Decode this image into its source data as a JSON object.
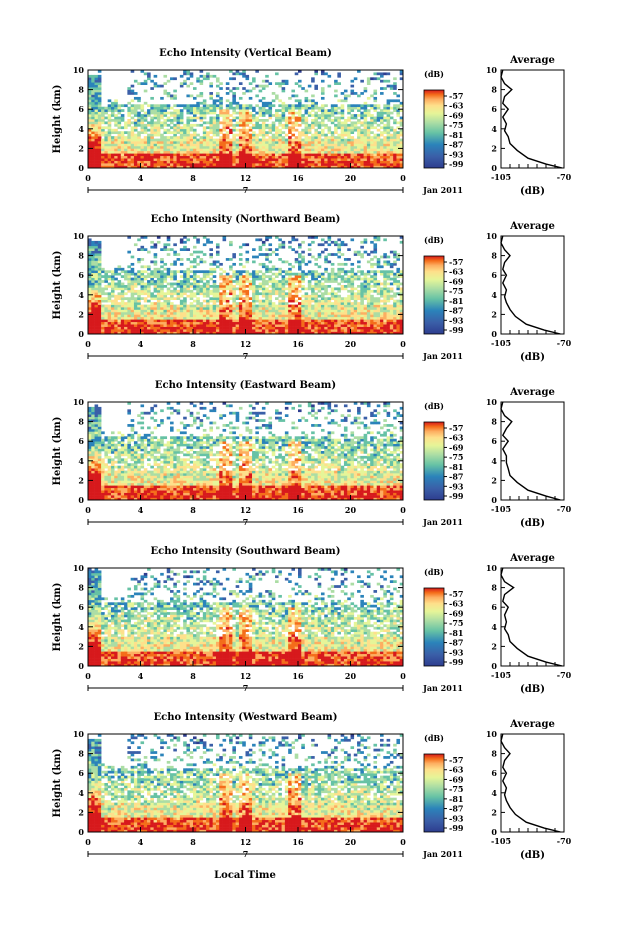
{
  "figure": {
    "xlabel": "Local Time",
    "date_label": "Jan 2011",
    "day_label": "7"
  },
  "chart_data": [
    {
      "type": "heatmap",
      "title": "Echo Intensity (Vertical Beam)",
      "ylabel": "Height (km)",
      "ylim": [
        0,
        10
      ],
      "yticks": [
        0,
        2,
        4,
        6,
        8,
        10
      ],
      "xlim": [
        0,
        24
      ],
      "xticks": [
        "0",
        "4",
        "8",
        "12",
        "16",
        "20",
        "0"
      ],
      "colorbar": {
        "unit": "(dB)",
        "ticks": [
          "-57",
          "-63",
          "-69",
          "-75",
          "-81",
          "-87",
          "-93",
          "-99"
        ],
        "colors": [
          "#d7191c",
          "#f46d1a",
          "#fdae61",
          "#fee08b",
          "#e6f598",
          "#abdda4",
          "#66c2a5",
          "#2b83ba",
          "#3a5fa8",
          "#2e3d8f"
        ]
      }
    },
    {
      "type": "line",
      "title": "Average",
      "xlabel": "(dB)",
      "xlim": [
        -105,
        -70
      ],
      "xticks": [
        "-105",
        "-70"
      ],
      "ylim": [
        0,
        10
      ],
      "yticks": [
        0,
        2,
        4,
        6,
        8,
        10
      ],
      "x": [
        -71,
        -80,
        -90,
        -96,
        -100,
        -101,
        -103,
        -102,
        -104,
        -101,
        -104,
        -103,
        -99,
        -103,
        -105,
        -104
      ],
      "y": [
        0,
        0.4,
        1,
        1.8,
        2.5,
        3.2,
        3.8,
        4.5,
        5.2,
        6,
        6.6,
        7.3,
        8,
        8.6,
        9.3,
        10
      ]
    },
    {
      "type": "heatmap",
      "title": "Echo Intensity (Northward Beam)",
      "ylabel": "Height (km)",
      "ylim": [
        0,
        10
      ],
      "yticks": [
        0,
        2,
        4,
        6,
        8,
        10
      ],
      "xlim": [
        0,
        24
      ],
      "xticks": [
        "0",
        "4",
        "8",
        "12",
        "16",
        "20",
        "0"
      ],
      "colorbar": {
        "unit": "(dB)",
        "ticks": [
          "-57",
          "-63",
          "-69",
          "-75",
          "-81",
          "-87",
          "-93",
          "-99"
        ]
      }
    },
    {
      "type": "line",
      "title": "Average",
      "xlabel": "(dB)",
      "xlim": [
        -105,
        -70
      ],
      "xticks": [
        "-105",
        "-70"
      ],
      "ylim": [
        0,
        10
      ],
      "yticks": [
        0,
        2,
        4,
        6,
        8,
        10
      ],
      "x": [
        -72,
        -81,
        -91,
        -97,
        -100,
        -102,
        -103,
        -102,
        -104,
        -102,
        -104,
        -103,
        -100,
        -103,
        -105,
        -104
      ],
      "y": [
        0,
        0.4,
        1,
        1.8,
        2.5,
        3.2,
        3.8,
        4.5,
        5.2,
        6,
        6.6,
        7.3,
        8,
        8.6,
        9.3,
        10
      ]
    },
    {
      "type": "heatmap",
      "title": "Echo Intensity (Eastward Beam)",
      "ylabel": "Height (km)",
      "ylim": [
        0,
        10
      ],
      "yticks": [
        0,
        2,
        4,
        6,
        8,
        10
      ],
      "xlim": [
        0,
        24
      ],
      "xticks": [
        "0",
        "4",
        "8",
        "12",
        "16",
        "20",
        "0"
      ],
      "colorbar": {
        "unit": "(dB)",
        "ticks": [
          "-57",
          "-63",
          "-69",
          "-75",
          "-81",
          "-87",
          "-93",
          "-99"
        ]
      }
    },
    {
      "type": "line",
      "title": "Average",
      "xlabel": "(dB)",
      "xlim": [
        -105,
        -70
      ],
      "xticks": [
        "-105",
        "-70"
      ],
      "ylim": [
        0,
        10
      ],
      "yticks": [
        0,
        2,
        4,
        6,
        8,
        10
      ],
      "x": [
        -72,
        -80,
        -90,
        -96,
        -100,
        -101,
        -102,
        -102,
        -104,
        -101,
        -104,
        -102,
        -99,
        -103,
        -105,
        -104
      ],
      "y": [
        0,
        0.4,
        1,
        1.8,
        2.5,
        3.2,
        3.8,
        4.5,
        5.2,
        6,
        6.6,
        7.3,
        8,
        8.6,
        9.3,
        10
      ]
    },
    {
      "type": "heatmap",
      "title": "Echo Intensity (Southward Beam)",
      "ylabel": "Height (km)",
      "ylim": [
        0,
        10
      ],
      "yticks": [
        0,
        2,
        4,
        6,
        8,
        10
      ],
      "xlim": [
        0,
        24
      ],
      "xticks": [
        "0",
        "4",
        "8",
        "12",
        "16",
        "20",
        "0"
      ],
      "colorbar": {
        "unit": "(dB)",
        "ticks": [
          "-57",
          "-63",
          "-69",
          "-75",
          "-81",
          "-87",
          "-93",
          "-99"
        ]
      }
    },
    {
      "type": "line",
      "title": "Average",
      "xlabel": "(dB)",
      "xlim": [
        -105,
        -70
      ],
      "xticks": [
        "-105",
        "-70"
      ],
      "ylim": [
        0,
        10
      ],
      "yticks": [
        0,
        2,
        4,
        6,
        8,
        10
      ],
      "x": [
        -71,
        -80,
        -90,
        -96,
        -100,
        -101,
        -103,
        -102,
        -103,
        -101,
        -104,
        -103,
        -98,
        -103,
        -105,
        -104
      ],
      "y": [
        0,
        0.4,
        1,
        1.8,
        2.5,
        3.2,
        3.8,
        4.5,
        5.2,
        6,
        6.6,
        7.3,
        8,
        8.6,
        9.3,
        10
      ]
    },
    {
      "type": "heatmap",
      "title": "Echo Intensity (Westward Beam)",
      "ylabel": "Height (km)",
      "ylim": [
        0,
        10
      ],
      "yticks": [
        0,
        2,
        4,
        6,
        8,
        10
      ],
      "xlim": [
        0,
        24
      ],
      "xticks": [
        "0",
        "4",
        "8",
        "12",
        "16",
        "20",
        "0"
      ],
      "colorbar": {
        "unit": "(dB)",
        "ticks": [
          "-57",
          "-63",
          "-69",
          "-75",
          "-81",
          "-87",
          "-93",
          "-99"
        ]
      }
    },
    {
      "type": "line",
      "title": "Average",
      "xlabel": "(dB)",
      "xlim": [
        -105,
        -70
      ],
      "xticks": [
        "-105",
        "-70"
      ],
      "ylim": [
        0,
        10
      ],
      "yticks": [
        0,
        2,
        4,
        6,
        8,
        10
      ],
      "x": [
        -72,
        -81,
        -91,
        -97,
        -100,
        -102,
        -103,
        -102,
        -104,
        -102,
        -104,
        -103,
        -100,
        -103,
        -105,
        -104
      ],
      "y": [
        0,
        0.4,
        1,
        1.8,
        2.5,
        3.2,
        3.8,
        4.5,
        5.2,
        6,
        6.6,
        7.3,
        8,
        8.6,
        9.3,
        10
      ]
    }
  ]
}
